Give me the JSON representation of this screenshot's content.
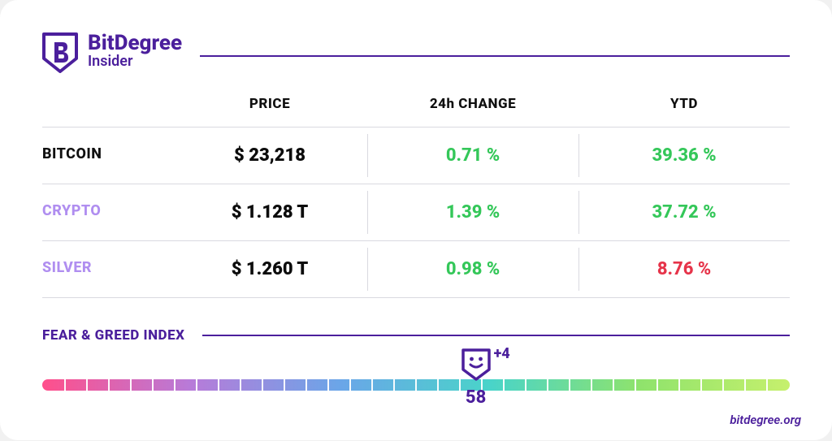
{
  "brand": {
    "name": "BitDegree",
    "sub": "Insider",
    "color": "#4b1f9c",
    "name_fontsize": 26,
    "sub_fontsize": 18
  },
  "table": {
    "columns": [
      "PRICE",
      "24h CHANGE",
      "YTD"
    ],
    "header_color": "#0f0f0f",
    "header_fontsize": 17,
    "border_color": "#d9d9e0",
    "row_labels": [
      {
        "text": "BITCOIN",
        "color": "#0f0f0f"
      },
      {
        "text": "CRYPTO",
        "color": "#b08ef0"
      },
      {
        "text": "SILVER",
        "color": "#b08ef0"
      }
    ],
    "rows": [
      {
        "price": "$ 23,218",
        "change": "0.71 %",
        "change_color": "#34c759",
        "ytd": "39.36 %",
        "ytd_color": "#34c759"
      },
      {
        "price": "$ 1.128 T",
        "change": "1.39 %",
        "change_color": "#34c759",
        "ytd": "37.72 %",
        "ytd_color": "#34c759"
      },
      {
        "price": "$ 1.260 T",
        "change": "0.98 %",
        "change_color": "#34c759",
        "ytd": "8.76 %",
        "ytd_color": "#e6344a"
      }
    ],
    "price_color": "#0c0c0c",
    "value_fontsize": 22,
    "label_fontsize": 18
  },
  "fear_greed": {
    "title": "FEAR & GREED INDEX",
    "title_color": "#4b1f9c",
    "value": 58,
    "delta": "+4",
    "min": 0,
    "max": 100,
    "gauge_height": 14,
    "tick_count": 35,
    "gradient": [
      "#ff4f8b",
      "#b77bd9",
      "#6aa6e8",
      "#49d4c9",
      "#8fe36c",
      "#c6f06d"
    ],
    "marker_color": "#4b1f9c",
    "value_fontsize": 22,
    "delta_fontsize": 18
  },
  "footer": {
    "text": "bitdegree.org",
    "color": "#4b1f9c"
  },
  "background_color": "#ffffff",
  "card_radius": 22
}
